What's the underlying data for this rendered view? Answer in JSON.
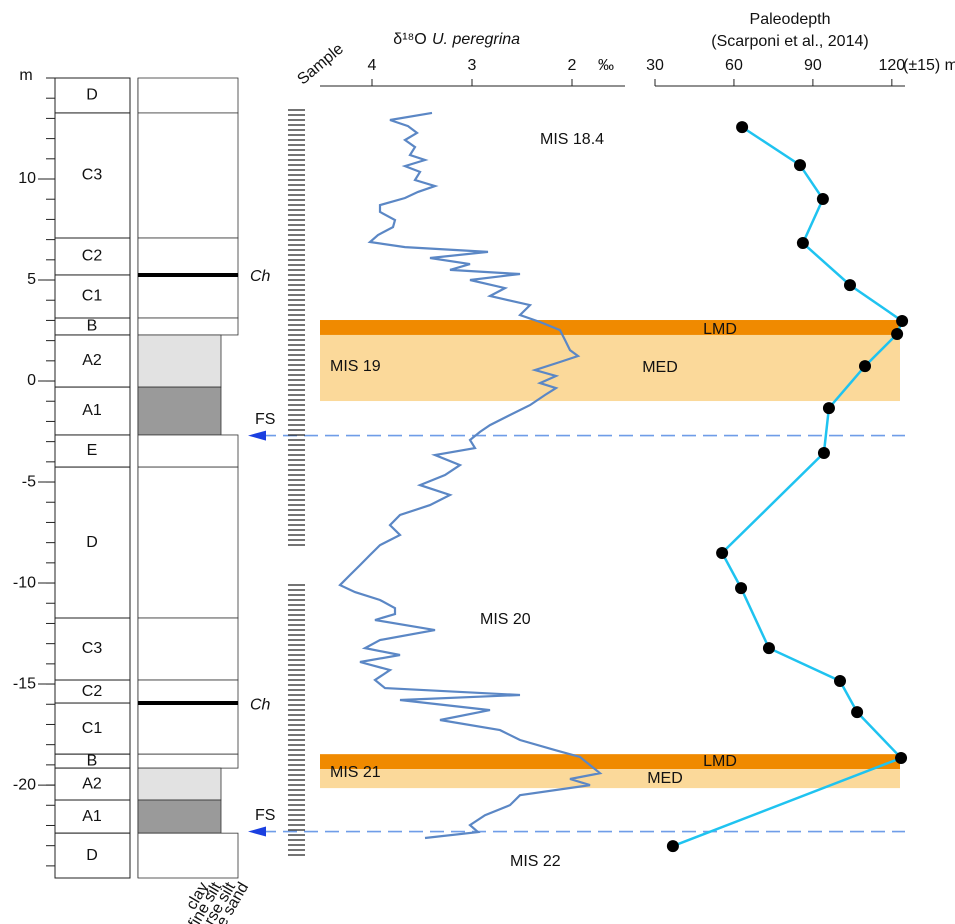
{
  "depth_axis": {
    "label": "m",
    "ylim": [
      -24.6,
      15
    ],
    "yticks": [
      -20,
      -15,
      -10,
      -5,
      0,
      5,
      10
    ]
  },
  "chart_data": [
    {
      "type": "line",
      "title": "δ¹⁸O",
      "species": "U. peregrina",
      "unit": "‰",
      "xlim": [
        4.52,
        1.47
      ],
      "xticks": [
        4,
        3,
        2
      ],
      "color": "#5b87c5",
      "depth": [
        13.27,
        12.92,
        12.62,
        12.28,
        11.93,
        11.58,
        11.19,
        10.94,
        10.64,
        10.35,
        9.95,
        9.65,
        9.36,
        9.06,
        8.71,
        8.37,
        7.97,
        7.62,
        7.23,
        6.88,
        6.63,
        6.39,
        6.09,
        5.79,
        5.5,
        5.3,
        5.0,
        4.6,
        4.21,
        3.76,
        3.27,
        2.92,
        2.52,
        2.03,
        1.53,
        1.24,
        0.94,
        0.54,
        0.25,
        -0.1,
        -0.35,
        -0.69,
        -1.19,
        -1.68,
        -2.18,
        -2.52,
        -2.92,
        -3.32,
        -3.66,
        -4.16,
        -4.65,
        -5.15,
        -5.64,
        -6.14,
        -6.63,
        -7.13,
        -7.62,
        -8.12,
        -8.61,
        -9.11,
        -9.6,
        -10.1,
        -10.45,
        -10.84,
        -11.24,
        -11.53,
        -11.83,
        -12.33,
        -12.82,
        -13.22,
        -13.56,
        -13.91,
        -14.31,
        -14.8,
        -15.2,
        -15.54,
        -15.79,
        -16.29,
        -16.78,
        -17.28,
        -17.77,
        -18.27,
        -18.61,
        -19.01,
        -19.41,
        -19.7,
        -20.0,
        -20.5,
        -20.99,
        -21.49,
        -21.98,
        -22.33,
        -22.62
      ],
      "values": [
        3.4,
        3.82,
        3.64,
        3.55,
        3.67,
        3.57,
        3.62,
        3.47,
        3.67,
        3.52,
        3.57,
        3.37,
        3.54,
        3.67,
        3.92,
        3.92,
        3.77,
        3.79,
        3.94,
        4.02,
        3.67,
        2.84,
        3.42,
        3.02,
        3.22,
        2.52,
        3.02,
        2.67,
        2.82,
        2.42,
        2.52,
        2.32,
        2.12,
        2.07,
        2.02,
        1.94,
        2.12,
        2.37,
        2.16,
        2.32,
        2.16,
        2.27,
        2.42,
        2.62,
        2.82,
        2.92,
        3.02,
        2.97,
        3.37,
        3.12,
        3.27,
        3.52,
        3.22,
        3.42,
        3.72,
        3.82,
        3.72,
        3.92,
        4.02,
        4.12,
        4.22,
        4.32,
        4.17,
        3.92,
        3.77,
        3.77,
        3.97,
        3.37,
        3.92,
        4.07,
        3.72,
        4.12,
        3.82,
        3.97,
        3.87,
        2.52,
        3.72,
        2.82,
        3.32,
        2.72,
        2.52,
        2.17,
        1.92,
        1.82,
        1.72,
        2.02,
        1.82,
        2.52,
        2.62,
        2.87,
        3.02,
        2.94,
        3.47
      ]
    },
    {
      "type": "line",
      "title": "Paleodepth",
      "subtitle": "(Scarponi et al., 2014)",
      "unit": "(±15) m",
      "xlim": [
        30,
        125
      ],
      "xticks": [
        30,
        60,
        90,
        120
      ],
      "color": "#1fc3f0",
      "marker_color": "#000000",
      "depth": [
        12.57,
        10.69,
        9.01,
        6.83,
        4.75,
        2.97,
        2.33,
        0.74,
        -1.34,
        -3.56,
        -8.51,
        -10.25,
        -13.22,
        -14.85,
        -16.39,
        -18.66,
        -23.02
      ],
      "values": [
        63.1,
        85.1,
        93.8,
        86.2,
        104.1,
        123.9,
        122,
        109.8,
        96.1,
        94.2,
        55.5,
        62.7,
        73.3,
        100.3,
        106.8,
        123.5,
        36.8
      ]
    }
  ],
  "column": {
    "sample_label": "Sample",
    "grain_sizes": [
      "clay",
      "fine silt",
      "coarse silt",
      "fine sand"
    ],
    "units": [
      {
        "label": "D",
        "top": 15.0,
        "bottom": 13.27,
        "fill": "#ffffff"
      },
      {
        "label": "C3",
        "top": 13.27,
        "bottom": 7.08,
        "fill": "#ffffff"
      },
      {
        "label": "C2",
        "top": 7.08,
        "bottom": 5.25,
        "fill": "#ffffff"
      },
      {
        "label": "C1",
        "top": 5.25,
        "bottom": 3.12,
        "fill": "#ffffff"
      },
      {
        "label": "B",
        "top": 3.12,
        "bottom": 2.28,
        "fill": "#ffffff"
      },
      {
        "label": "A2",
        "top": 2.28,
        "bottom": -0.3,
        "fill": "#e2e2e2"
      },
      {
        "label": "A1",
        "top": -0.3,
        "bottom": -2.67,
        "fill": "#9a9a9a"
      },
      {
        "label": "E",
        "top": -2.67,
        "bottom": -4.26,
        "fill": "#ffffff"
      },
      {
        "label": "D",
        "top": -4.26,
        "bottom": -11.73,
        "fill": "#ffffff"
      },
      {
        "label": "C3",
        "top": -11.73,
        "bottom": -14.8,
        "fill": "#ffffff"
      },
      {
        "label": "C2",
        "top": -14.8,
        "bottom": -15.94,
        "fill": "#ffffff"
      },
      {
        "label": "C1",
        "top": -15.94,
        "bottom": -18.47,
        "fill": "#ffffff"
      },
      {
        "label": "B",
        "top": -18.47,
        "bottom": -19.16,
        "fill": "#ffffff"
      },
      {
        "label": "A2",
        "top": -19.16,
        "bottom": -20.74,
        "fill": "#e2e2e2"
      },
      {
        "label": "A1",
        "top": -20.74,
        "bottom": -22.38,
        "fill": "#9a9a9a"
      },
      {
        "label": "D",
        "top": -22.38,
        "bottom": -24.6,
        "fill": "#ffffff"
      }
    ],
    "condensed": [
      {
        "label": "Ch",
        "depth": 5.25
      },
      {
        "label": "Ch",
        "depth": -15.94
      }
    ],
    "flooding": [
      {
        "label": "FS",
        "depth": -2.7
      },
      {
        "label": "FS",
        "depth": -22.3
      }
    ]
  },
  "stages": [
    "MIS 18.4",
    "MIS 19",
    "MIS 20",
    "MIS 21",
    "MIS 22"
  ],
  "bands": [
    {
      "label": "LMD",
      "top": 3.02,
      "bottom": 2.28,
      "color": "#f08a00"
    },
    {
      "label": "MED",
      "top": 2.28,
      "bottom": -0.99,
      "color": "#fbd99a"
    },
    {
      "label": "LMD",
      "top": -18.47,
      "bottom": -19.21,
      "color": "#f08a00"
    },
    {
      "label": "MED",
      "top": -19.21,
      "bottom": -20.15,
      "color": "#fbd99a"
    }
  ]
}
